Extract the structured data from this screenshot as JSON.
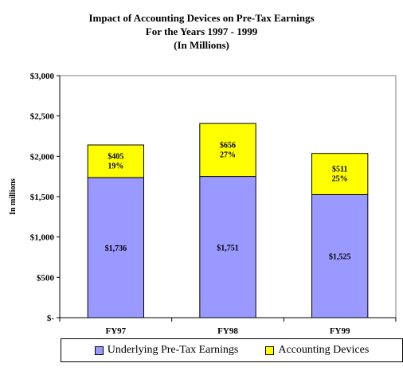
{
  "chart_data": {
    "type": "bar",
    "stacked": true,
    "title_lines": [
      "Impact of Accounting Devices on Pre-Tax Earnings",
      "For the Years 1997 - 1999",
      "(In Millions)"
    ],
    "ylabel": "In millions",
    "xlabel": "",
    "categories": [
      "FY97",
      "FY98",
      "FY99"
    ],
    "ylim": [
      0,
      3000
    ],
    "yticks": [
      0,
      500,
      1000,
      1500,
      2000,
      2500,
      3000
    ],
    "ytick_labels": [
      "$-",
      "$500",
      "$1,000",
      "$1,500",
      "$2,000",
      "$2,500",
      "$3,000"
    ],
    "grid": false,
    "legend_position": "bottom",
    "series": [
      {
        "name": "Underlying Pre-Tax Earnings",
        "color": "#9999ff",
        "values": [
          1736,
          1751,
          1525
        ],
        "labels": [
          "$1,736",
          "$1,751",
          "$1,525"
        ]
      },
      {
        "name": "Accounting Devices",
        "color": "#ffff00",
        "values": [
          405,
          656,
          511
        ],
        "labels": [
          "$405",
          "$656",
          "$511"
        ],
        "percent_labels": [
          "19%",
          "27%",
          "25%"
        ]
      }
    ]
  }
}
